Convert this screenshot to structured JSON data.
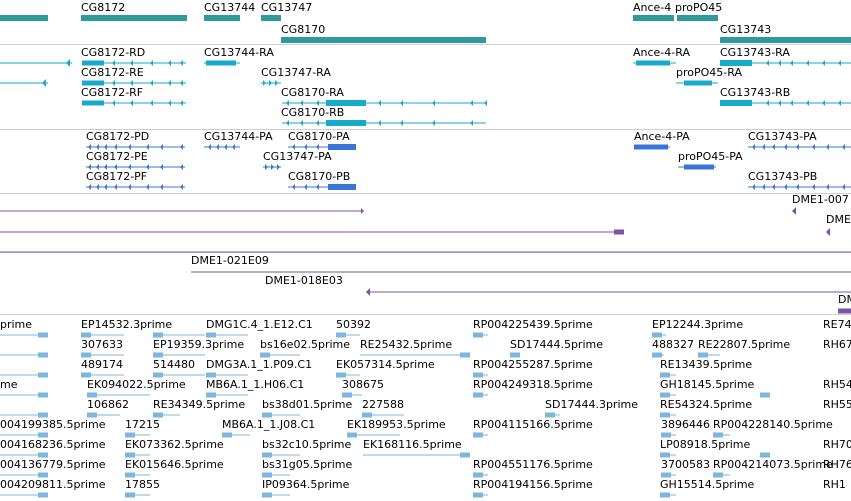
{
  "colors": {
    "gene": "#2e9a9a",
    "transcript": "#19a9c9",
    "cds": "#3a74d4",
    "clone": "#7a55a8",
    "est": "#7fb6dc",
    "separator": "#cfcfcf"
  },
  "tracks": {
    "genes": {
      "labels": [
        "CG8172",
        "CG13744",
        "CG13747",
        "CG8170",
        "Ance-4",
        "proPO45",
        "CG13743"
      ]
    },
    "transcripts": {
      "labels": [
        "CG8172-RD",
        "CG8172-RE",
        "CG8172-RF",
        "CG13744-RA",
        "CG13747-RA",
        "CG8170-RA",
        "CG8170-RB",
        "Ance-4-RA",
        "proPO45-RA",
        "CG13743-RA",
        "CG13743-RB"
      ]
    },
    "cds": {
      "labels": [
        "CG8172-PD",
        "CG8172-PE",
        "CG8172-PF",
        "CG13744-PA",
        "CG8170-PA",
        "CG13747-PA",
        "CG8170-PB",
        "Ance-4-PA",
        "proPO45-PA",
        "CG13743-PA",
        "CG13743-PB"
      ]
    },
    "clones": {
      "labels": [
        "DME1-021E09",
        "DME1-018E03",
        "DME1-007",
        "DME",
        "DM"
      ]
    },
    "ests": {
      "labels": [
        "prime",
        "EP14532.3prime",
        "DMG1C.4_1.E12.C1",
        "50392",
        "RP004225439.5prime",
        "EP12244.3prime",
        "RE74",
        "307633",
        "EP19359.3prime",
        "bs16e02.5prime",
        "RE25432.5prime",
        "SD17444.5prime",
        "488327",
        "RE22807.5prime",
        "RH67",
        "489174",
        "514480",
        "DMG3A.1_1.P09.C1",
        "EK057314.5prime",
        "RP004255287.5prime",
        "RE13439.5prime",
        "me",
        "EK094022.5prime",
        "MB6A.1_1.H06.C1",
        "308675",
        "RP004249318.5prime",
        "GH18145.5prime",
        "RH54",
        "106862",
        "RE34349.5prime",
        "bs38d01.5prime",
        "227588",
        "SD17444.3prime",
        "RE54324.5prime",
        "RH55",
        "004199385.5prime",
        "17215",
        "MB6A.1_1.J08.C1",
        "EK189953.5prime",
        "RP004115166.5prime",
        "3896446",
        "RP004228140.5prime",
        "004168236.5prime",
        "EK073362.5prime",
        "bs32c10.5prime",
        "EK168116.5prime",
        "LP08918.5prime",
        "RH70",
        "004136779.5prime",
        "EK015646.5prime",
        "bs31g05.5prime",
        "RP004551176.5prime",
        "3700583",
        "RP004214073.5prime",
        "RH76",
        "004209811.5prime",
        "17855",
        "IP09364.5prime",
        "RP004194156.5prime",
        "GH15514.5prime",
        "RH1"
      ]
    }
  }
}
